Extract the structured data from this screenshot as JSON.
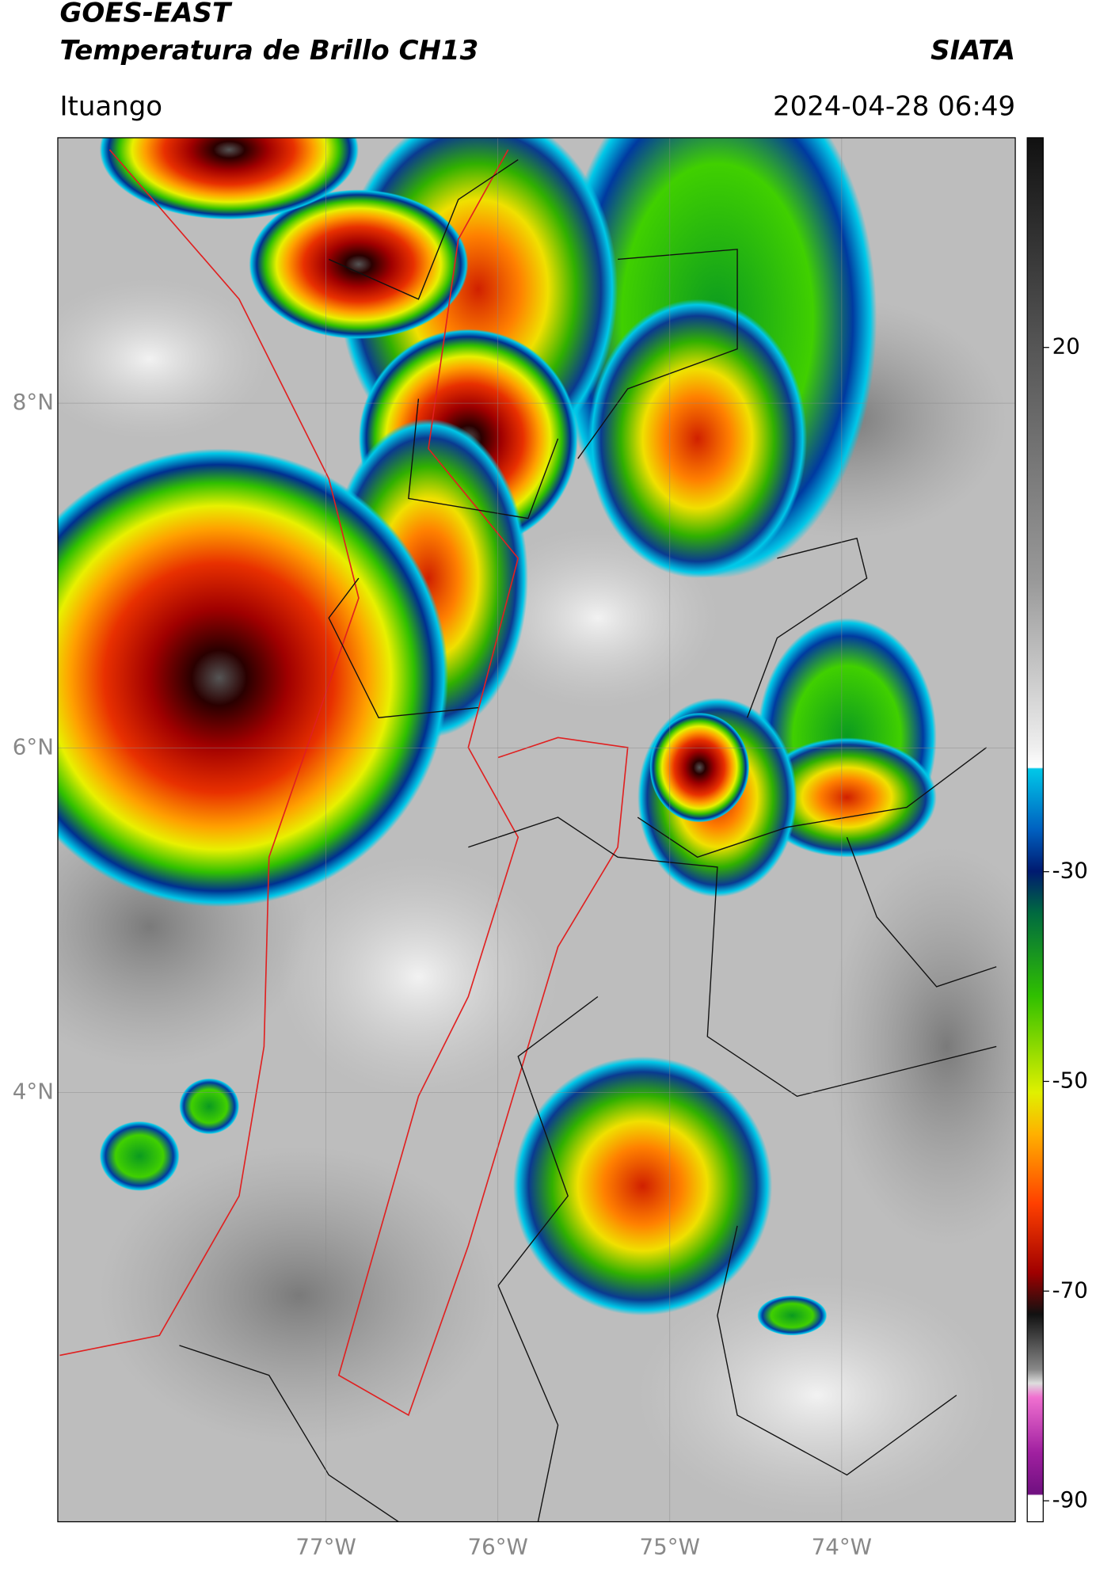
{
  "header": {
    "title": "GOES-EAST",
    "subtitle": "Temperatura de Brillo CH13",
    "brand": "SIATA",
    "location": "Ituango",
    "datetime": "2024-04-28 06:49"
  },
  "map": {
    "xlim": [
      -78.56,
      -72.99
    ],
    "ylim": [
      1.51,
      9.54
    ],
    "xticks": [
      {
        "value": -77,
        "label": "77°W"
      },
      {
        "value": -76,
        "label": "76°W"
      },
      {
        "value": -75,
        "label": "75°W"
      },
      {
        "value": -74,
        "label": "74°W"
      }
    ],
    "yticks": [
      {
        "value": 8,
        "label": "8°N"
      },
      {
        "value": 6,
        "label": "6°N"
      },
      {
        "value": 4,
        "label": "4°N"
      }
    ],
    "grid": true
  },
  "colorbar": {
    "lim": [
      -92,
      40
    ],
    "ticks": [
      20,
      -30,
      -50,
      -70,
      -90
    ]
  }
}
